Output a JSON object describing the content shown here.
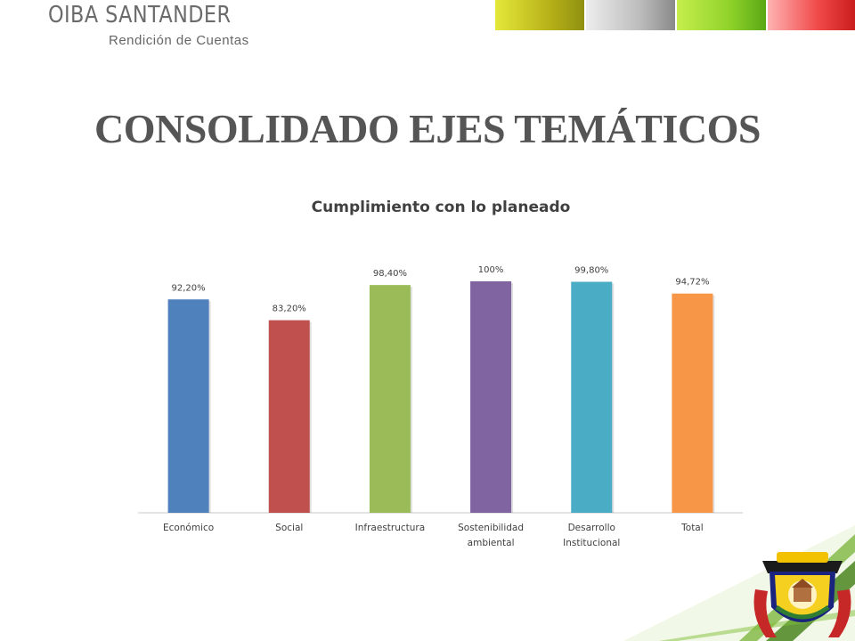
{
  "header": {
    "brand": "OIBA SANTANDER",
    "subtitle": "Rendición de Cuentas"
  },
  "slide": {
    "title": "CONSOLIDADO EJES TEMÁTICOS"
  },
  "chart_data": {
    "type": "bar",
    "title": "Cumplimiento con lo planeado",
    "xlabel": "",
    "ylabel": "",
    "ylim": [
      0,
      100
    ],
    "grid": false,
    "categories": [
      [
        "Económico"
      ],
      [
        "Social"
      ],
      [
        "Infraestructura"
      ],
      [
        "Sostenibilidad",
        "ambiental"
      ],
      [
        "Desarrollo",
        "Institucional"
      ],
      [
        "Total"
      ]
    ],
    "values": [
      92.2,
      83.2,
      98.4,
      100,
      99.8,
      94.72
    ],
    "data_labels": [
      "92,20%",
      "83,20%",
      "98,40%",
      "100%",
      "99,80%",
      "94,72%"
    ],
    "colors": [
      "#4f81bd",
      "#c0504d",
      "#9bbb59",
      "#8064a2",
      "#4bacc6",
      "#f79646"
    ]
  },
  "colors": {
    "corner_green": "#5a9a1a",
    "title_gray": "#555555"
  }
}
